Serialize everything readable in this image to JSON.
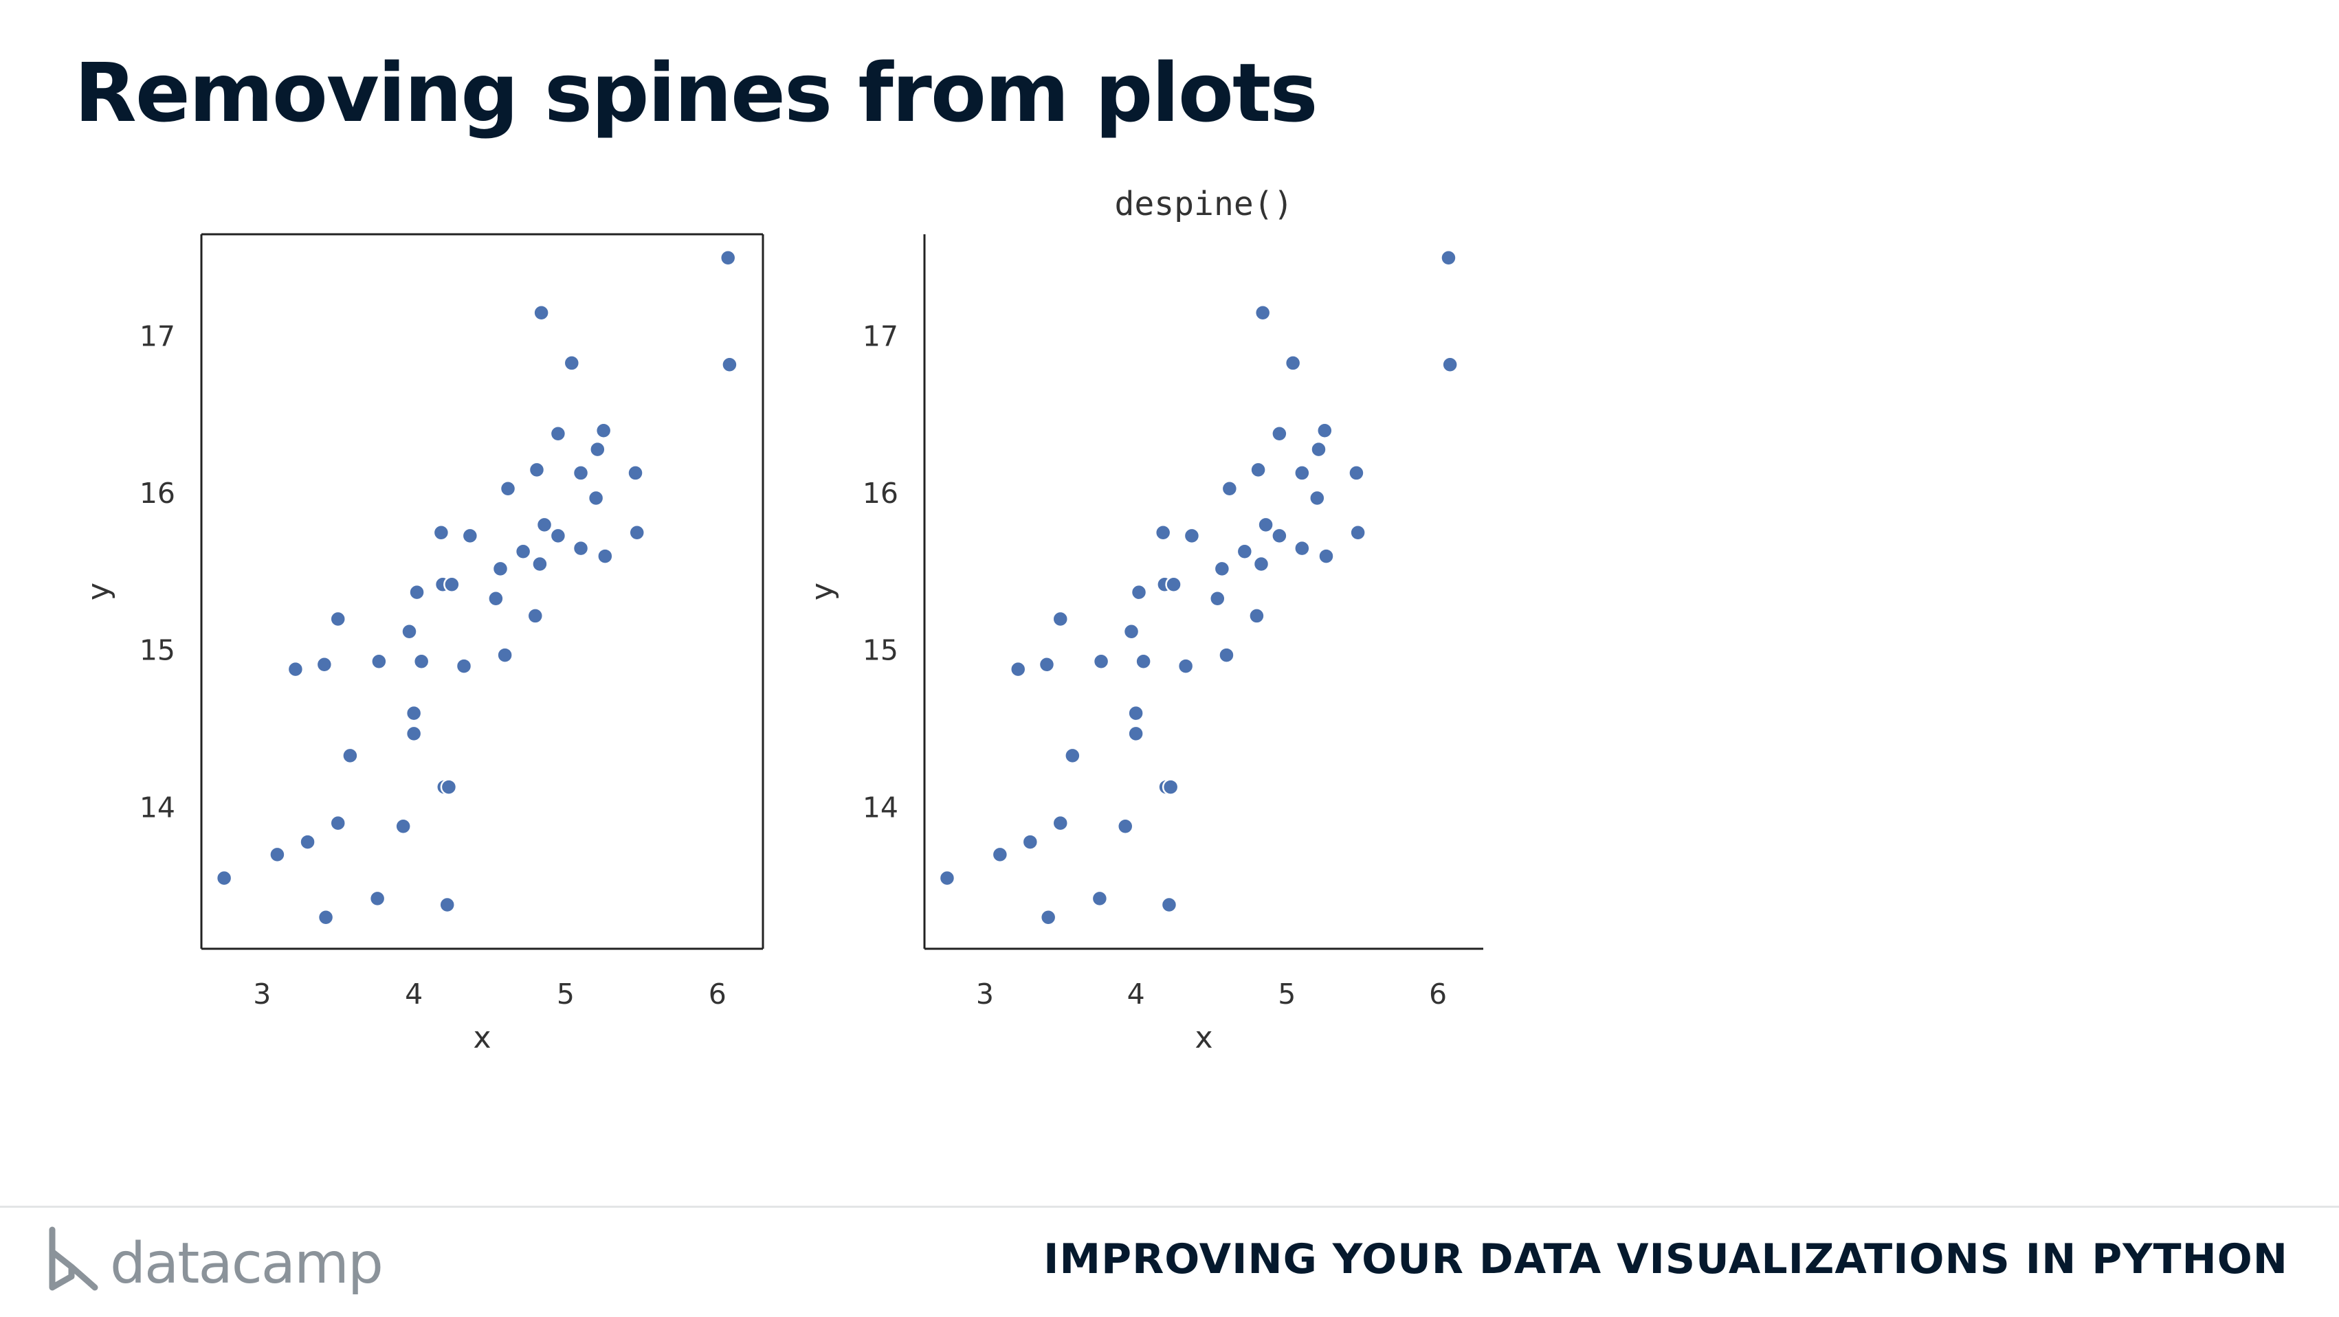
{
  "slide": {
    "title": "Removing spines from plots",
    "brand": "datacamp",
    "course": "IMPROVING YOUR DATA VISUALIZATIONS IN PYTHON"
  },
  "colors": {
    "title": "#05192d",
    "point": "#4c72b0",
    "axis": "#222222",
    "logo": "#8b939a"
  },
  "chart_data": [
    {
      "type": "scatter",
      "title": "",
      "xlabel": "x",
      "ylabel": "y",
      "xlim": [
        2.6,
        6.3
      ],
      "ylim": [
        13.1,
        17.65
      ],
      "xticks": [
        3,
        4,
        5,
        6
      ],
      "yticks": [
        14,
        15,
        16,
        17
      ],
      "spines": "all",
      "points": [
        {
          "x": 2.75,
          "y": 13.55
        },
        {
          "x": 3.1,
          "y": 13.7
        },
        {
          "x": 3.3,
          "y": 13.78
        },
        {
          "x": 3.42,
          "y": 13.3
        },
        {
          "x": 3.5,
          "y": 13.9
        },
        {
          "x": 3.76,
          "y": 13.42
        },
        {
          "x": 3.93,
          "y": 13.88
        },
        {
          "x": 4.22,
          "y": 13.38
        },
        {
          "x": 3.58,
          "y": 14.33
        },
        {
          "x": 4.0,
          "y": 14.6
        },
        {
          "x": 4.0,
          "y": 14.47
        },
        {
          "x": 4.2,
          "y": 14.13
        },
        {
          "x": 4.23,
          "y": 14.13
        },
        {
          "x": 3.22,
          "y": 14.88
        },
        {
          "x": 3.41,
          "y": 14.91
        },
        {
          "x": 3.77,
          "y": 14.93
        },
        {
          "x": 4.05,
          "y": 14.93
        },
        {
          "x": 4.33,
          "y": 14.9
        },
        {
          "x": 4.6,
          "y": 14.97
        },
        {
          "x": 3.97,
          "y": 15.12
        },
        {
          "x": 3.5,
          "y": 15.2
        },
        {
          "x": 4.02,
          "y": 15.37
        },
        {
          "x": 4.19,
          "y": 15.42
        },
        {
          "x": 4.25,
          "y": 15.42
        },
        {
          "x": 4.54,
          "y": 15.33
        },
        {
          "x": 4.8,
          "y": 15.22
        },
        {
          "x": 4.57,
          "y": 15.52
        },
        {
          "x": 4.72,
          "y": 15.63
        },
        {
          "x": 4.83,
          "y": 15.55
        },
        {
          "x": 5.1,
          "y": 15.65
        },
        {
          "x": 5.26,
          "y": 15.6
        },
        {
          "x": 4.18,
          "y": 15.75
        },
        {
          "x": 4.37,
          "y": 15.73
        },
        {
          "x": 4.86,
          "y": 15.8
        },
        {
          "x": 4.95,
          "y": 15.73
        },
        {
          "x": 5.47,
          "y": 15.75
        },
        {
          "x": 4.62,
          "y": 16.03
        },
        {
          "x": 4.81,
          "y": 16.15
        },
        {
          "x": 5.1,
          "y": 16.13
        },
        {
          "x": 5.2,
          "y": 15.97
        },
        {
          "x": 5.46,
          "y": 16.13
        },
        {
          "x": 4.95,
          "y": 16.38
        },
        {
          "x": 5.21,
          "y": 16.28
        },
        {
          "x": 5.25,
          "y": 16.4
        },
        {
          "x": 5.04,
          "y": 16.83
        },
        {
          "x": 4.84,
          "y": 17.15
        },
        {
          "x": 6.08,
          "y": 16.82
        },
        {
          "x": 6.07,
          "y": 17.5
        }
      ]
    },
    {
      "type": "scatter",
      "title": "despine()",
      "xlabel": "x",
      "ylabel": "y",
      "xlim": [
        2.6,
        6.3
      ],
      "ylim": [
        13.1,
        17.65
      ],
      "xticks": [
        3,
        4,
        5,
        6
      ],
      "yticks": [
        14,
        15,
        16,
        17
      ],
      "spines": "left-bottom",
      "points": [
        {
          "x": 2.75,
          "y": 13.55
        },
        {
          "x": 3.1,
          "y": 13.7
        },
        {
          "x": 3.3,
          "y": 13.78
        },
        {
          "x": 3.42,
          "y": 13.3
        },
        {
          "x": 3.5,
          "y": 13.9
        },
        {
          "x": 3.76,
          "y": 13.42
        },
        {
          "x": 3.93,
          "y": 13.88
        },
        {
          "x": 4.22,
          "y": 13.38
        },
        {
          "x": 3.58,
          "y": 14.33
        },
        {
          "x": 4.0,
          "y": 14.6
        },
        {
          "x": 4.0,
          "y": 14.47
        },
        {
          "x": 4.2,
          "y": 14.13
        },
        {
          "x": 4.23,
          "y": 14.13
        },
        {
          "x": 3.22,
          "y": 14.88
        },
        {
          "x": 3.41,
          "y": 14.91
        },
        {
          "x": 3.77,
          "y": 14.93
        },
        {
          "x": 4.05,
          "y": 14.93
        },
        {
          "x": 4.33,
          "y": 14.9
        },
        {
          "x": 4.6,
          "y": 14.97
        },
        {
          "x": 3.97,
          "y": 15.12
        },
        {
          "x": 3.5,
          "y": 15.2
        },
        {
          "x": 4.02,
          "y": 15.37
        },
        {
          "x": 4.19,
          "y": 15.42
        },
        {
          "x": 4.25,
          "y": 15.42
        },
        {
          "x": 4.54,
          "y": 15.33
        },
        {
          "x": 4.8,
          "y": 15.22
        },
        {
          "x": 4.57,
          "y": 15.52
        },
        {
          "x": 4.72,
          "y": 15.63
        },
        {
          "x": 4.83,
          "y": 15.55
        },
        {
          "x": 5.1,
          "y": 15.65
        },
        {
          "x": 5.26,
          "y": 15.6
        },
        {
          "x": 4.18,
          "y": 15.75
        },
        {
          "x": 4.37,
          "y": 15.73
        },
        {
          "x": 4.86,
          "y": 15.8
        },
        {
          "x": 4.95,
          "y": 15.73
        },
        {
          "x": 5.47,
          "y": 15.75
        },
        {
          "x": 4.62,
          "y": 16.03
        },
        {
          "x": 4.81,
          "y": 16.15
        },
        {
          "x": 5.1,
          "y": 16.13
        },
        {
          "x": 5.2,
          "y": 15.97
        },
        {
          "x": 5.46,
          "y": 16.13
        },
        {
          "x": 4.95,
          "y": 16.38
        },
        {
          "x": 5.21,
          "y": 16.28
        },
        {
          "x": 5.25,
          "y": 16.4
        },
        {
          "x": 5.04,
          "y": 16.83
        },
        {
          "x": 4.84,
          "y": 17.15
        },
        {
          "x": 6.08,
          "y": 16.82
        },
        {
          "x": 6.07,
          "y": 17.5
        }
      ]
    }
  ]
}
